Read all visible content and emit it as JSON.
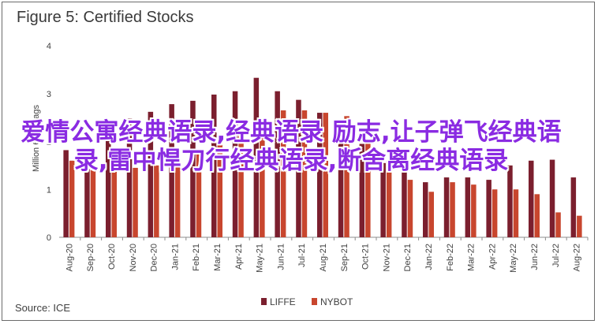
{
  "chart_data": {
    "type": "bar",
    "title": "Figure 5: Certified Stocks",
    "ylabel": "Million 60kg bags",
    "ylim": [
      0,
      4
    ],
    "yticks": [
      "0",
      "1",
      "2",
      "3",
      "4"
    ],
    "grid": false,
    "legend_position": "bottom-center",
    "categories": [
      "Aug-20",
      "Sep-20",
      "Oct-20",
      "Nov-20",
      "Dec-20",
      "Jan-21",
      "Feb-21",
      "Mar-21",
      "Apr-21",
      "May-21",
      "Jun-21",
      "Jul-21",
      "Aug-21",
      "Sep-21",
      "Oct-21",
      "Nov-21",
      "Dec-21",
      "Jan-22",
      "Feb-22",
      "Mar-22",
      "Apr-22",
      "May-22",
      "Jun-22",
      "Jul-22",
      "Aug-22"
    ],
    "series": [
      {
        "name": "LIFFE",
        "color": "#7b1f2e",
        "values": [
          1.82,
          1.85,
          2.08,
          2.48,
          2.62,
          2.78,
          2.85,
          2.98,
          3.05,
          3.33,
          3.05,
          2.87,
          2.6,
          2.17,
          1.95,
          1.55,
          1.4,
          1.15,
          1.25,
          1.25,
          1.2,
          1.5,
          1.6,
          1.62,
          1.25
        ]
      },
      {
        "name": "NYBOT",
        "color": "#c8462e",
        "values": [
          1.6,
          1.48,
          1.55,
          1.45,
          1.5,
          1.58,
          1.85,
          1.98,
          2.15,
          2.42,
          2.65,
          2.65,
          2.6,
          2.53,
          2.0,
          1.6,
          1.2,
          0.95,
          1.15,
          1.1,
          1.0,
          1.0,
          0.9,
          0.52,
          0.45
        ]
      }
    ]
  },
  "source": "Source: ICE",
  "overlay_text": "爱情公寓经典语录,经典语录 励志,让子弹飞经典语录,雷中悍刀行经典语录,断舍离经典语录"
}
